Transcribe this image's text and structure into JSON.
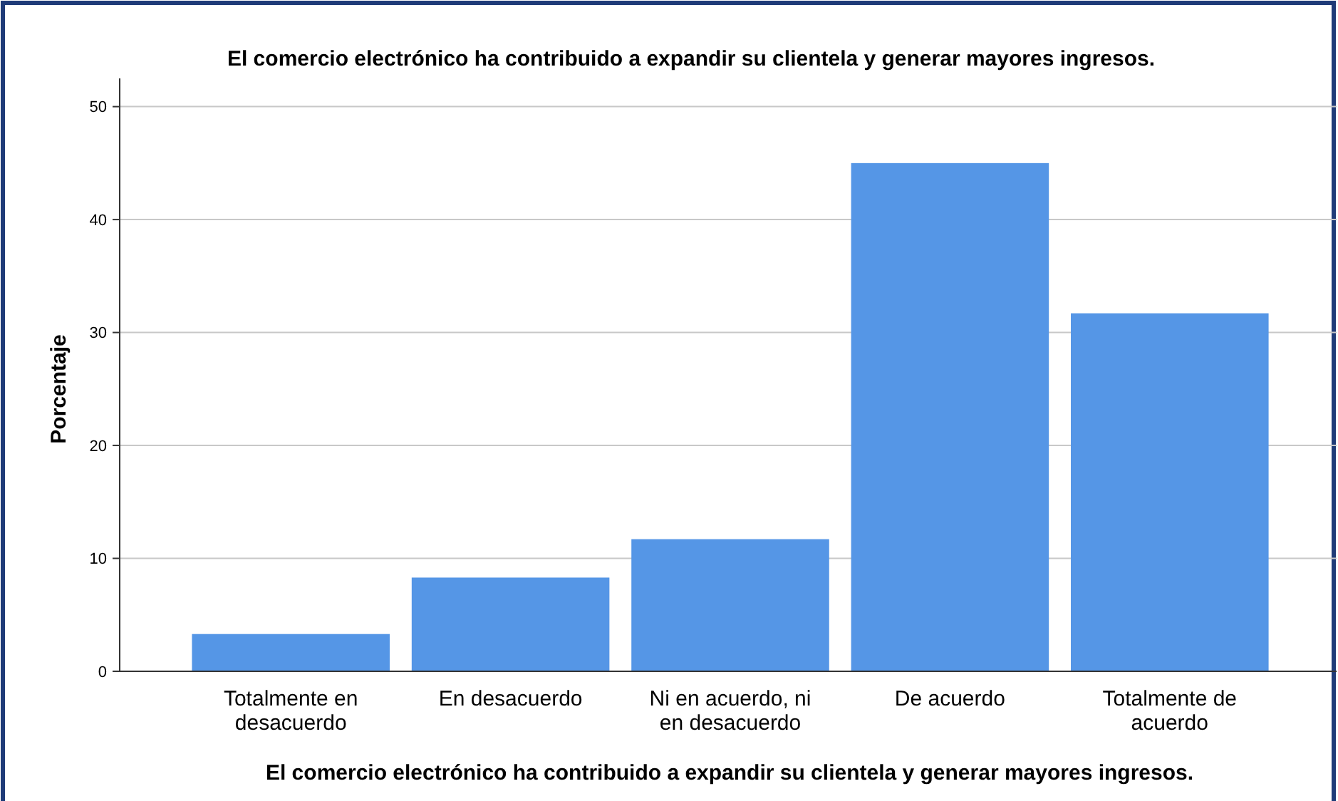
{
  "chart_data": {
    "type": "bar",
    "title": "El comercio electrónico ha contribuido a expandir su clientela y generar mayores ingresos.",
    "xlabel": "El comercio electrónico ha contribuido a expandir su clientela y generar mayores ingresos.",
    "ylabel": "Porcentaje",
    "categories": [
      "Totalmente en desacuerdo",
      "En desacuerdo",
      "Ni en acuerdo, ni en desacuerdo",
      "De acuerdo",
      "Totalmente de acuerdo"
    ],
    "values": [
      3.3,
      8.3,
      11.7,
      45.0,
      31.7
    ],
    "color": "#5596e6",
    "ylim": [
      0,
      52.5
    ],
    "yticks": [
      0,
      10,
      20,
      30,
      40,
      50
    ],
    "grid": "y"
  }
}
